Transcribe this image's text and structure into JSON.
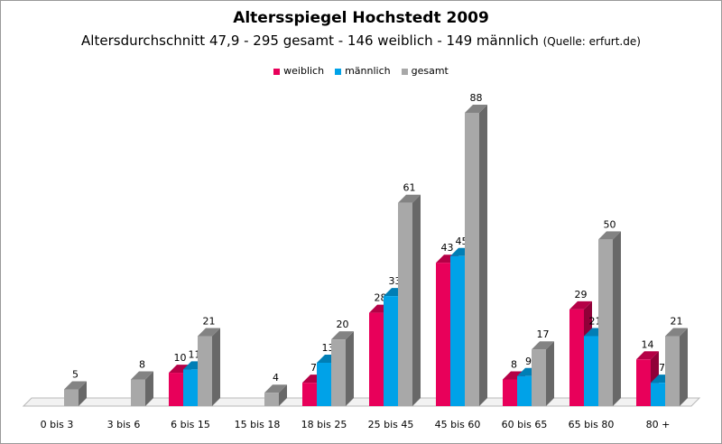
{
  "chart_data": {
    "type": "bar",
    "title": "Altersspiegel Hochstedt 2009",
    "subtitle": "Altersdurchschnitt 47,9 - 295 gesamt - 146 weiblich - 149 männlich",
    "source": "(Quelle: erfurt.de)",
    "categories": [
      "0 bis 3",
      "3 bis 6",
      "6 bis 15",
      "15 bis 18",
      "18 bis 25",
      "25 bis 45",
      "45 bis 60",
      "60 bis 65",
      "65 bis 80",
      "80 +"
    ],
    "series": [
      {
        "name": "weiblich",
        "color": "#e8005a",
        "values": [
          null,
          null,
          10,
          null,
          7,
          28,
          43,
          8,
          29,
          14
        ]
      },
      {
        "name": "männlich",
        "color": "#00a2e8",
        "values": [
          null,
          null,
          11,
          null,
          13,
          33,
          45,
          9,
          21,
          7
        ]
      },
      {
        "name": "gesamt",
        "color": "#a8a8a8",
        "values": [
          5,
          8,
          21,
          4,
          20,
          61,
          88,
          17,
          50,
          21
        ]
      }
    ],
    "ylim": [
      0,
      88
    ],
    "legend_position": "top-center",
    "grid": false,
    "style": "3d-columns"
  }
}
